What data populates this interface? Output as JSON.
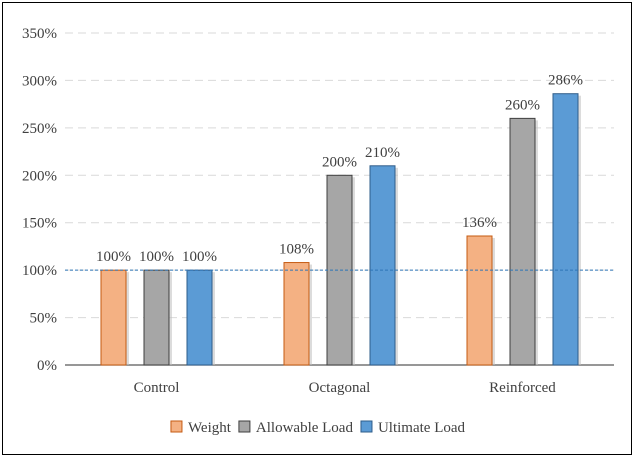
{
  "chart_data": {
    "type": "bar",
    "categories": [
      "Control",
      "Octagonal",
      "Reinforced"
    ],
    "series": [
      {
        "name": "Weight",
        "values": [
          100,
          108,
          136
        ],
        "labels": [
          "100%",
          "108%",
          "136%"
        ],
        "color": "#F4B183",
        "stroke": "#C55A11"
      },
      {
        "name": "Allowable Load",
        "values": [
          100,
          200,
          260
        ],
        "labels": [
          "100%",
          "200%",
          "260%"
        ],
        "color": "#A6A6A6",
        "stroke": "#3F3F3F"
      },
      {
        "name": "Ultimate Load",
        "values": [
          100,
          210,
          286
        ],
        "labels": [
          "100%",
          "210%",
          "286%"
        ],
        "color": "#5B9BD5",
        "stroke": "#2E5C8A"
      }
    ],
    "ylim": [
      0,
      350
    ],
    "yticks": [
      0,
      50,
      100,
      150,
      200,
      250,
      300,
      350
    ],
    "ytick_labels": [
      "0%",
      "50%",
      "100%",
      "150%",
      "200%",
      "250%",
      "300%",
      "350%"
    ],
    "reference_line": {
      "value": 100,
      "color": "#2E75B6",
      "style": "dashed"
    },
    "grid": true,
    "legend": "bottom",
    "title": "",
    "xlabel": "",
    "ylabel": ""
  }
}
